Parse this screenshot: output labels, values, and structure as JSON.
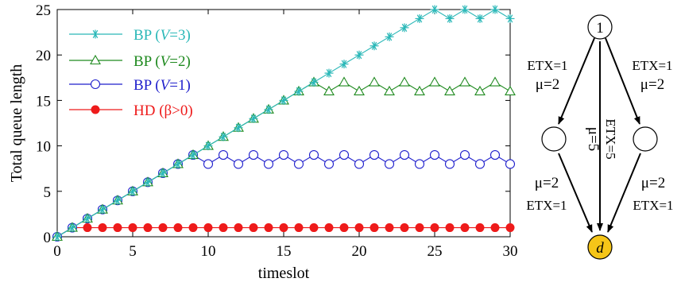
{
  "chart_data": {
    "type": "line",
    "xlabel": "timeslot",
    "ylabel": "Total queue length",
    "xlim": [
      0,
      30
    ],
    "ylim": [
      0,
      25
    ],
    "xticks": [
      0,
      5,
      10,
      15,
      20,
      25,
      30
    ],
    "yticks": [
      0,
      5,
      10,
      15,
      20,
      25
    ],
    "grid": false,
    "legend_position": "top-left",
    "x": [
      0,
      1,
      2,
      3,
      4,
      5,
      6,
      7,
      8,
      9,
      10,
      11,
      12,
      13,
      14,
      15,
      16,
      17,
      18,
      19,
      20,
      21,
      22,
      23,
      24,
      25,
      26,
      27,
      28,
      29,
      30
    ],
    "series": [
      {
        "name": "BP (V=3)",
        "legend_prefix": "BP (",
        "legend_var": "V",
        "legend_suffix": "=3)",
        "color": "#2bb8b8",
        "marker": "asterisk",
        "values": [
          0,
          1,
          2,
          3,
          4,
          5,
          6,
          7,
          8,
          9,
          10,
          11,
          12,
          13,
          14,
          15,
          16,
          17,
          18,
          19,
          20,
          21,
          22,
          23,
          24,
          25,
          24,
          25,
          24,
          25,
          24
        ]
      },
      {
        "name": "BP (V=2)",
        "legend_prefix": "BP (",
        "legend_var": "V",
        "legend_suffix": "=2)",
        "color": "#1f8a1f",
        "marker": "triangle",
        "values": [
          0,
          1,
          2,
          3,
          4,
          5,
          6,
          7,
          8,
          9,
          10,
          11,
          12,
          13,
          14,
          15,
          16,
          17,
          16,
          17,
          16,
          17,
          16,
          17,
          16,
          17,
          16,
          17,
          16,
          17,
          16
        ]
      },
      {
        "name": "BP (V=1)",
        "legend_prefix": "BP (",
        "legend_var": "V",
        "legend_suffix": "=1)",
        "color": "#1f1fcc",
        "marker": "circle-open",
        "values": [
          0,
          1,
          2,
          3,
          4,
          5,
          6,
          7,
          8,
          9,
          8,
          9,
          8,
          9,
          8,
          9,
          8,
          9,
          8,
          9,
          8,
          9,
          8,
          9,
          8,
          9,
          8,
          9,
          8,
          9,
          8
        ]
      },
      {
        "name": "HD (β>0)",
        "legend_prefix": "HD (β>0)",
        "legend_var": "",
        "legend_suffix": "",
        "color": "#ee1b1b",
        "marker": "circle-filled",
        "values": [
          0,
          1,
          1,
          1,
          1,
          1,
          1,
          1,
          1,
          1,
          1,
          1,
          1,
          1,
          1,
          1,
          1,
          1,
          1,
          1,
          1,
          1,
          1,
          1,
          1,
          1,
          1,
          1,
          1,
          1,
          1
        ]
      }
    ]
  },
  "diagram": {
    "nodes": {
      "source": "1",
      "left": "",
      "right": "",
      "dest": "d"
    },
    "dest_color": "#f5c518",
    "edge_labels": {
      "top_left_etx": "ETX=1",
      "top_left_mu": "μ=2",
      "top_right_etx": "ETX=1",
      "top_right_mu": "μ=2",
      "bottom_left_mu": "μ=2",
      "bottom_left_etx": "ETX=1",
      "bottom_right_mu": "μ=2",
      "bottom_right_etx": "ETX=1",
      "middle_mu": "μ=5",
      "middle_etx": "ETX=5"
    }
  }
}
